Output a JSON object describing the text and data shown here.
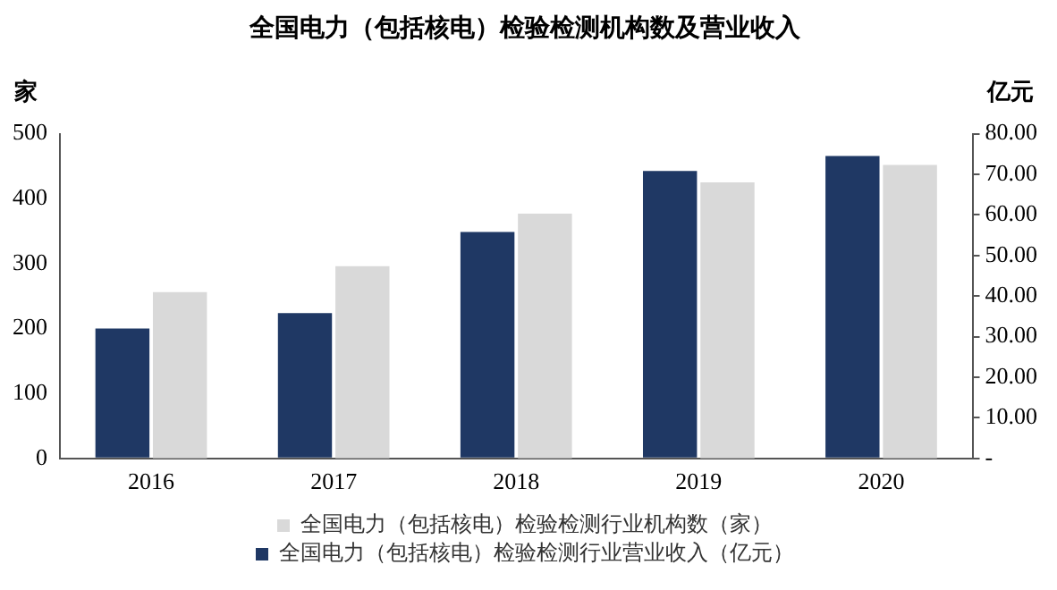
{
  "chart_data": {
    "type": "bar",
    "title": "全国电力（包括核电）检验检测机构数及营业收入",
    "ylabel": "家",
    "y2label": "亿元",
    "categories": [
      "2016",
      "2017",
      "2018",
      "2019",
      "2020"
    ],
    "series": [
      {
        "name": "全国电力（包括核电）检验检测行业营业收入（亿元）",
        "color": "#1f3864",
        "axis": "y2",
        "values": [
          32.0,
          35.8,
          55.8,
          70.8,
          74.5
        ]
      },
      {
        "name": "全国电力（包括核电）检验检测行业机构数（家）",
        "color": "#d9d9d9",
        "values": [
          256,
          296,
          377,
          425,
          452
        ]
      }
    ],
    "ylim": [
      0,
      500
    ],
    "yticks": [
      0,
      100,
      200,
      300,
      400,
      500
    ],
    "y2lim": [
      0,
      80
    ],
    "y2ticks": [
      {
        "value": 0,
        "label": "-"
      },
      {
        "value": 10,
        "label": "10.00"
      },
      {
        "value": 20,
        "label": "20.00"
      },
      {
        "value": 30,
        "label": "30.00"
      },
      {
        "value": 40,
        "label": "40.00"
      },
      {
        "value": 50,
        "label": "50.00"
      },
      {
        "value": 60,
        "label": "60.00"
      },
      {
        "value": 70,
        "label": "70.00"
      },
      {
        "value": 80,
        "label": "80.00"
      }
    ],
    "grid": false,
    "legend": "bottom"
  }
}
